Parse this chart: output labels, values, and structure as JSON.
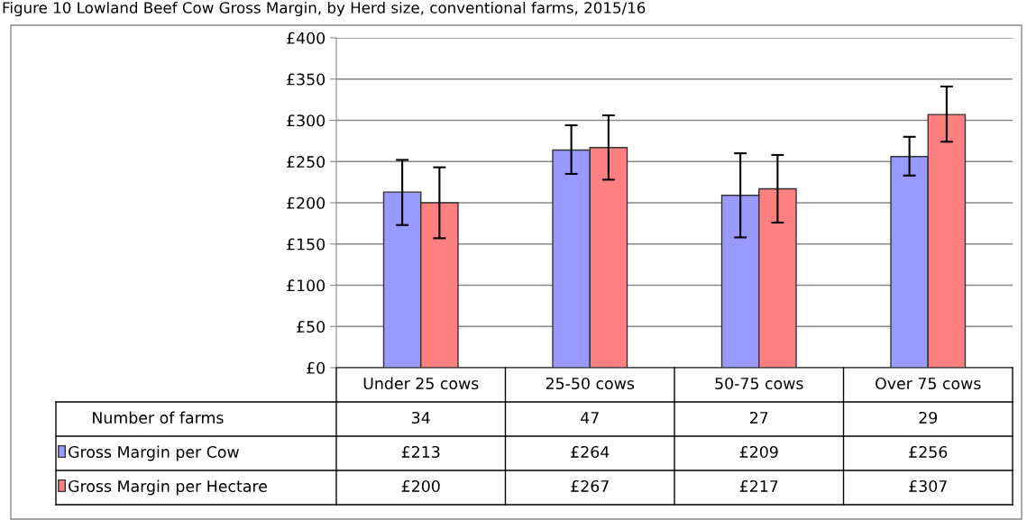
{
  "chart_data": {
    "type": "bar",
    "title": "Figure 10 Lowland Beef Cow Gross Margin, by Herd size, conventional farms, 2015/16",
    "categories": [
      "Under 25 cows",
      "25-50 cows",
      "50-75 cows",
      "Over 75 cows"
    ],
    "series": [
      {
        "name": "Gross Margin per Cow",
        "color": "#9999ff",
        "values": [
          213,
          264,
          209,
          256
        ],
        "value_labels": [
          "£213",
          "£264",
          "£209",
          "£256"
        ],
        "errors": [
          [
            173,
            252
          ],
          [
            235,
            294
          ],
          [
            158,
            260
          ],
          [
            233,
            280
          ]
        ]
      },
      {
        "name": "Gross Margin per Hectare",
        "color": "#ff8080",
        "values": [
          200,
          267,
          217,
          307
        ],
        "value_labels": [
          "£200",
          "£267",
          "£217",
          "£307"
        ],
        "errors": [
          [
            157,
            243
          ],
          [
            228,
            306
          ],
          [
            176,
            258
          ],
          [
            274,
            341
          ]
        ]
      }
    ],
    "ylim": [
      0,
      400
    ],
    "yticks": [
      {
        "value": 0,
        "label": "£0"
      },
      {
        "value": 50,
        "label": "£50"
      },
      {
        "value": 100,
        "label": "£100"
      },
      {
        "value": 150,
        "label": "£150"
      },
      {
        "value": 200,
        "label": "£200"
      },
      {
        "value": 250,
        "label": "£250"
      },
      {
        "value": 300,
        "label": "£300"
      },
      {
        "value": 350,
        "label": "£350"
      },
      {
        "value": 400,
        "label": "£400"
      }
    ],
    "grid": "y",
    "legend": "bottom",
    "annotations": [
      "Number of farms",
      "34",
      "47",
      "27",
      "29"
    ]
  }
}
